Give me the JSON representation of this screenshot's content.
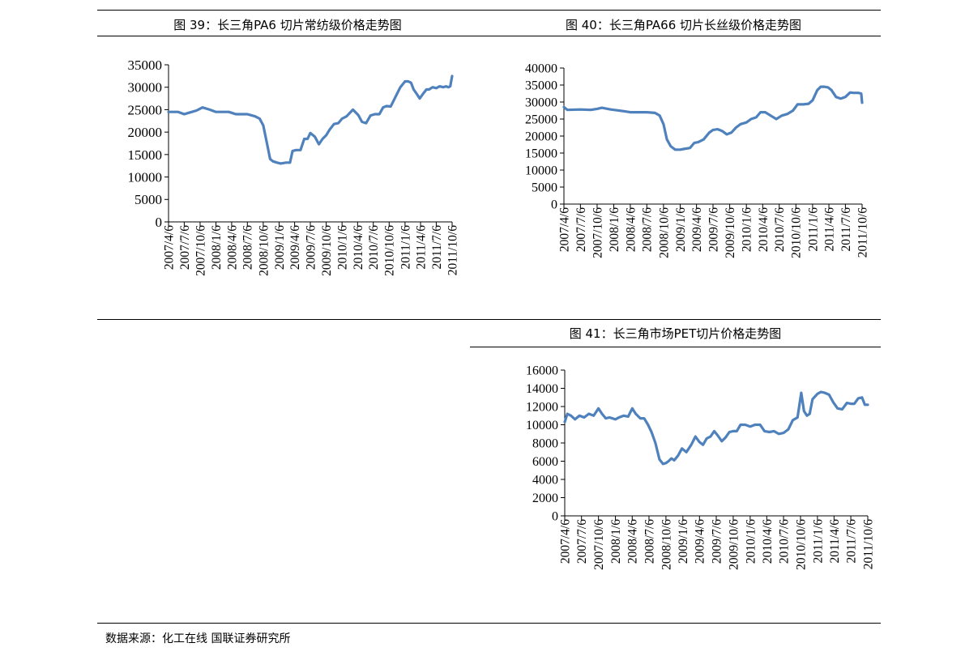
{
  "titles": {
    "c39": "图 39：长三角PA6 切片常纺级价格走势图",
    "c40": "图 40：长三角PA66 切片长丝级价格走势图",
    "c41": "图 41：长三角市场PET切片价格走势图"
  },
  "source": "数据来源：化工在线  国联证券研究所",
  "colors": {
    "line": "#4f81bd",
    "axis": "#000000"
  },
  "chart_data": [
    {
      "type": "line",
      "title": "图 39：长三角PA6 切片常纺级价格走势图",
      "xlabel": "",
      "ylabel": "",
      "ylim": [
        0,
        35000
      ],
      "yticks": [
        0,
        5000,
        10000,
        15000,
        20000,
        25000,
        30000,
        35000
      ],
      "xlim": [
        "2007/4/6",
        "2011/10/6"
      ],
      "xticks": [
        "2007/4/6",
        "2007/7/6",
        "2007/10/6",
        "2008/1/6",
        "2008/4/6",
        "2008/7/6",
        "2008/10/6",
        "2009/1/6",
        "2009/4/6",
        "2009/7/6",
        "2009/10/6",
        "2010/1/6",
        "2010/4/6",
        "2010/7/6",
        "2010/10/6",
        "2011/1/6",
        "2011/4/6",
        "2011/7/6",
        "2011/10/6"
      ],
      "grid": false,
      "legend": "none",
      "series": [
        {
          "x": [
            "2007/4/6",
            "2007/6/1",
            "2007/7/6",
            "2007/8/1",
            "2007/9/15",
            "2007/10/20",
            "2007/12/1",
            "2008/1/6",
            "2008/2/15",
            "2008/3/20",
            "2008/5/1",
            "2008/6/1",
            "2008/7/6",
            "2008/8/20",
            "2008/9/15",
            "2008/10/6",
            "2008/10/25",
            "2008/11/15",
            "2008/12/1",
            "2008/12/25",
            "2009/1/15",
            "2009/2/15",
            "2009/3/10",
            "2009/3/25",
            "2009/4/15",
            "2009/5/10",
            "2009/6/1",
            "2009/6/20",
            "2009/7/6",
            "2009/8/1",
            "2009/8/25",
            "2009/9/15",
            "2009/10/6",
            "2009/10/25",
            "2009/11/20",
            "2009/12/15",
            "2010/1/6",
            "2010/2/1",
            "2010/3/10",
            "2010/4/10",
            "2010/5/1",
            "2010/5/25",
            "2010/6/20",
            "2010/7/15",
            "2010/8/10",
            "2010/9/1",
            "2010/9/20",
            "2010/10/15",
            "2010/11/1",
            "2010/11/20",
            "2010/12/10",
            "2011/1/6",
            "2011/1/25",
            "2011/2/10",
            "2011/2/25",
            "2011/3/15",
            "2011/4/1",
            "2011/4/20",
            "2011/5/10",
            "2011/5/25",
            "2011/6/15",
            "2011/7/6",
            "2011/7/25",
            "2011/8/15",
            "2011/9/1",
            "2011/9/15",
            "2011/9/25",
            "2011/10/6"
          ],
          "y": [
            24500,
            24500,
            24000,
            24300,
            24800,
            25500,
            25000,
            24500,
            24500,
            24500,
            24000,
            24000,
            24000,
            23500,
            23000,
            21500,
            18000,
            14000,
            13500,
            13200,
            13000,
            13200,
            13200,
            15800,
            16000,
            16000,
            18500,
            18500,
            19800,
            19000,
            17300,
            18500,
            19300,
            20500,
            21800,
            22000,
            23000,
            23500,
            25000,
            23800,
            22300,
            22000,
            23700,
            24000,
            24000,
            25500,
            25800,
            25700,
            27000,
            28500,
            30000,
            31300,
            31300,
            31000,
            29500,
            28500,
            27500,
            28500,
            29500,
            29500,
            30000,
            29800,
            30200,
            30000,
            30200,
            30000,
            30200,
            32500
          ]
        }
      ]
    },
    {
      "type": "line",
      "title": "图 40：长三角PA66 切片长丝级价格走势图",
      "xlabel": "",
      "ylabel": "",
      "ylim": [
        0,
        40000
      ],
      "yticks": [
        0,
        5000,
        10000,
        15000,
        20000,
        25000,
        30000,
        35000,
        40000
      ],
      "xlim": [
        "2007/4/6",
        "2011/10/6"
      ],
      "xticks": [
        "2007/4/6",
        "2007/7/6",
        "2007/10/6",
        "2008/1/6",
        "2008/4/6",
        "2008/7/6",
        "2008/10/6",
        "2009/1/6",
        "2009/4/6",
        "2009/7/6",
        "2009/10/6",
        "2010/1/6",
        "2010/4/6",
        "2010/7/6",
        "2010/10/6",
        "2011/1/6",
        "2011/4/6",
        "2011/7/6",
        "2011/10/6"
      ],
      "grid": false,
      "legend": "none",
      "series": [
        {
          "x": [
            "2007/4/6",
            "2007/4/25",
            "2007/7/6",
            "2007/9/1",
            "2007/10/6",
            "2007/11/1",
            "2007/12/20",
            "2008/1/6",
            "2008/3/1",
            "2008/4/6",
            "2008/5/20",
            "2008/7/6",
            "2008/8/20",
            "2008/9/15",
            "2008/10/6",
            "2008/10/25",
            "2008/11/15",
            "2008/12/10",
            "2009/1/6",
            "2009/1/25",
            "2009/3/1",
            "2009/3/25",
            "2009/4/15",
            "2009/5/15",
            "2009/6/15",
            "2009/7/6",
            "2009/8/1",
            "2009/8/25",
            "2009/9/20",
            "2009/10/15",
            "2009/11/10",
            "2009/12/5",
            "2010/1/6",
            "2010/2/1",
            "2010/3/1",
            "2010/3/25",
            "2010/4/20",
            "2010/5/20",
            "2010/6/20",
            "2010/7/20",
            "2010/8/20",
            "2010/9/20",
            "2010/10/15",
            "2010/11/15",
            "2010/12/15",
            "2011/1/6",
            "2011/2/1",
            "2011/2/20",
            "2011/3/10",
            "2011/4/1",
            "2011/4/20",
            "2011/5/15",
            "2011/6/10",
            "2011/7/6",
            "2011/8/1",
            "2011/8/20",
            "2011/9/15",
            "2011/10/1",
            "2011/10/6"
          ],
          "y": [
            28500,
            27700,
            27800,
            27700,
            28000,
            28300,
            27800,
            27700,
            27300,
            27000,
            27000,
            27000,
            26800,
            26000,
            23500,
            19000,
            17000,
            16000,
            16000,
            16200,
            16500,
            18000,
            18200,
            19000,
            21000,
            21800,
            22000,
            21500,
            20500,
            21000,
            22500,
            23500,
            24000,
            25000,
            25500,
            27000,
            27000,
            26000,
            25000,
            26000,
            26500,
            27500,
            29300,
            29300,
            29500,
            30500,
            33500,
            34500,
            34500,
            34300,
            33500,
            31500,
            31000,
            31500,
            32800,
            32700,
            32700,
            32500,
            29800
          ]
        }
      ]
    },
    {
      "type": "line",
      "title": "图 41：长三角市场PET切片价格走势图",
      "xlabel": "",
      "ylabel": "",
      "ylim": [
        0,
        16000
      ],
      "yticks": [
        0,
        2000,
        4000,
        6000,
        8000,
        10000,
        12000,
        14000,
        16000
      ],
      "xlim": [
        "2007/4/6",
        "2011/10/6"
      ],
      "xticks": [
        "2007/4/6",
        "2007/7/6",
        "2007/10/6",
        "2008/1/6",
        "2008/4/6",
        "2008/7/6",
        "2008/10/6",
        "2009/1/6",
        "2009/4/6",
        "2009/7/6",
        "2009/10/6",
        "2010/1/6",
        "2010/4/6",
        "2010/7/6",
        "2010/10/6",
        "2011/1/6",
        "2011/4/6",
        "2011/7/6",
        "2011/10/6"
      ],
      "grid": false,
      "legend": "none",
      "series": [
        {
          "x": [
            "2007/4/6",
            "2007/4/20",
            "2007/5/10",
            "2007/6/1",
            "2007/6/25",
            "2007/7/20",
            "2007/8/15",
            "2007/9/10",
            "2007/10/6",
            "2007/10/25",
            "2007/11/15",
            "2007/12/5",
            "2008/1/6",
            "2008/1/25",
            "2008/2/20",
            "2008/3/15",
            "2008/4/6",
            "2008/4/25",
            "2008/5/20",
            "2008/6/10",
            "2008/7/1",
            "2008/7/20",
            "2008/8/10",
            "2008/9/1",
            "2008/9/20",
            "2008/10/6",
            "2008/10/20",
            "2008/11/5",
            "2008/11/20",
            "2008/12/10",
            "2009/1/1",
            "2009/1/25",
            "2009/2/20",
            "2009/3/15",
            "2009/4/6",
            "2009/4/25",
            "2009/5/15",
            "2009/6/5",
            "2009/6/25",
            "2009/7/15",
            "2009/8/5",
            "2009/8/25",
            "2009/9/15",
            "2009/10/6",
            "2009/10/25",
            "2009/11/15",
            "2009/12/10",
            "2010/1/6",
            "2010/2/1",
            "2010/3/1",
            "2010/3/25",
            "2010/4/20",
            "2010/5/15",
            "2010/6/10",
            "2010/7/6",
            "2010/8/1",
            "2010/8/25",
            "2010/9/20",
            "2010/10/10",
            "2010/10/25",
            "2010/11/10",
            "2010/11/25",
            "2010/12/10",
            "2011/1/6",
            "2011/1/25",
            "2011/2/15",
            "2011/3/10",
            "2011/4/1",
            "2011/4/25",
            "2011/5/20",
            "2011/6/15",
            "2011/7/6",
            "2011/7/25",
            "2011/8/15",
            "2011/9/5",
            "2011/9/20",
            "2011/10/6"
          ],
          "y": [
            10300,
            11200,
            11000,
            10600,
            11000,
            10800,
            11200,
            11000,
            11800,
            11200,
            10700,
            10800,
            10600,
            10800,
            11000,
            10900,
            11800,
            11200,
            10700,
            10700,
            10000,
            9200,
            8000,
            6200,
            5700,
            5800,
            6000,
            6300,
            6100,
            6600,
            7400,
            7000,
            7800,
            8700,
            8100,
            7800,
            8500,
            8700,
            9300,
            8800,
            8200,
            8600,
            9200,
            9300,
            9300,
            10000,
            10000,
            9800,
            10000,
            10000,
            9300,
            9200,
            9300,
            9000,
            9100,
            9500,
            10500,
            10800,
            13500,
            11500,
            11000,
            11200,
            12800,
            13400,
            13600,
            13500,
            13300,
            12500,
            11800,
            11700,
            12400,
            12300,
            12300,
            12900,
            13000,
            12200,
            12200
          ]
        }
      ]
    }
  ]
}
